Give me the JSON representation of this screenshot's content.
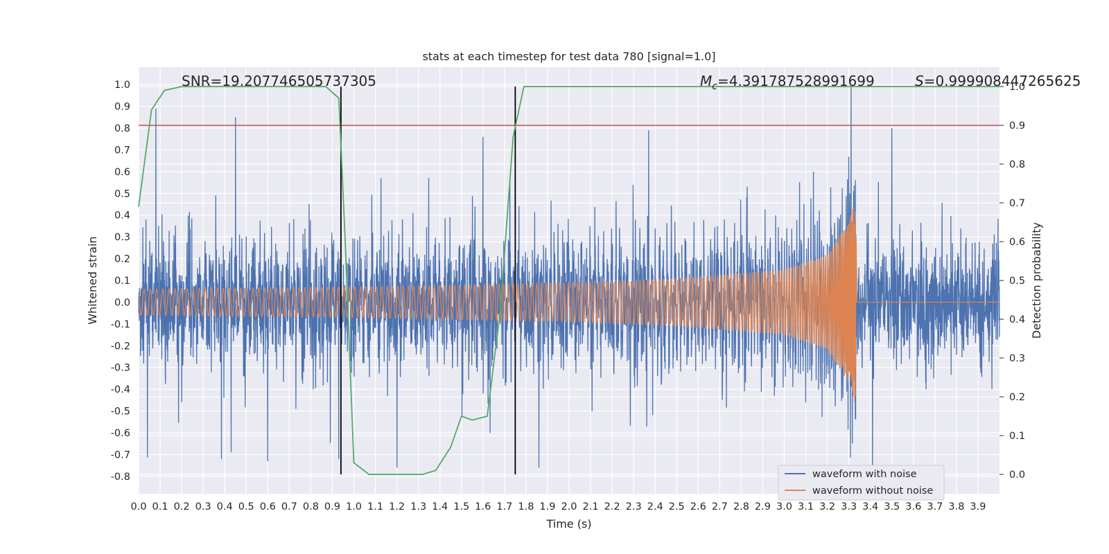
{
  "chart_data": {
    "type": "line",
    "title": "stats at each timestep for test data 780 [signal=1.0]",
    "xlabel": "Time (s)",
    "ylabel": "Whitened strain",
    "y2label": "Detection probability",
    "xlim": [
      0.0,
      4.0
    ],
    "ylim": [
      -0.88,
      1.08
    ],
    "y2lim": [
      -0.05,
      1.05
    ],
    "x_ticks": [
      "0.0",
      "0.1",
      "0.2",
      "0.3",
      "0.4",
      "0.5",
      "0.6",
      "0.7",
      "0.8",
      "0.9",
      "1.0",
      "1.1",
      "1.2",
      "1.3",
      "1.4",
      "1.5",
      "1.6",
      "1.7",
      "1.8",
      "1.9",
      "2.0",
      "2.1",
      "2.2",
      "2.3",
      "2.4",
      "2.5",
      "2.6",
      "2.7",
      "2.8",
      "2.9",
      "3.0",
      "3.1",
      "3.2",
      "3.3",
      "3.4",
      "3.5",
      "3.6",
      "3.7",
      "3.8",
      "3.9"
    ],
    "y_ticks": [
      "1.0",
      "0.9",
      "0.8",
      "0.7",
      "0.6",
      "0.5",
      "0.4",
      "0.3",
      "0.2",
      "0.1",
      "0.0",
      "-0.1",
      "-0.2",
      "-0.3",
      "-0.4",
      "-0.5",
      "-0.6",
      "-0.7",
      "-0.8"
    ],
    "y2_ticks": [
      "1.0",
      "0.9",
      "0.8",
      "0.7",
      "0.6",
      "0.5",
      "0.4",
      "0.3",
      "0.2",
      "0.1",
      "0.0"
    ],
    "grid": true,
    "legend_position": "lower-right",
    "annotations": {
      "snr": "SNR=19.207746505737305",
      "mc_symbol": "M",
      "mc_sub": "c",
      "mc_value": "=4.391787528991699",
      "s_symbol": "S",
      "s_value": "=0.999908447265625"
    },
    "series": [
      {
        "name": "waveform with noise",
        "color": "#4c72b0",
        "description_level": "noisy strain",
        "amplitude_estimate": 0.3,
        "peaks": [
          [
            0.08,
            0.89
          ],
          [
            0.45,
            0.85
          ],
          [
            0.94,
            0.93
          ],
          [
            3.31,
            1.0
          ],
          [
            3.5,
            0.8
          ],
          [
            2.37,
            0.79
          ],
          [
            1.6,
            0.76
          ]
        ],
        "troughs": [
          [
            1.2,
            -0.76
          ],
          [
            3.41,
            -0.8
          ],
          [
            0.43,
            -0.69
          ],
          [
            0.6,
            -0.73
          ],
          [
            0.93,
            -0.72
          ],
          [
            1.86,
            -0.76
          ]
        ]
      },
      {
        "name": "waveform without noise",
        "color": "#dd8452",
        "envelope_x": [
          0.0,
          1.0,
          2.0,
          2.5,
          3.0,
          3.2,
          3.3,
          3.33,
          3.34,
          4.0
        ],
        "envelope_amp": [
          0.06,
          0.07,
          0.09,
          0.11,
          0.15,
          0.22,
          0.37,
          0.47,
          0.0,
          0.0
        ]
      },
      {
        "name": "detection probability",
        "color": "#55a868",
        "axis": "right",
        "x": [
          0.0,
          0.06,
          0.12,
          0.2,
          0.3,
          0.5,
          0.7,
          0.87,
          0.93,
          0.96,
          1.0,
          1.07,
          1.15,
          1.25,
          1.32,
          1.38,
          1.45,
          1.5,
          1.55,
          1.62,
          1.68,
          1.74,
          1.79,
          1.82,
          2.0,
          2.5,
          3.0,
          3.5,
          4.0
        ],
        "y": [
          0.69,
          0.94,
          0.99,
          1.0,
          1.0,
          1.0,
          1.0,
          1.0,
          0.97,
          0.6,
          0.03,
          0.0,
          0.0,
          0.0,
          0.0,
          0.01,
          0.07,
          0.15,
          0.14,
          0.15,
          0.42,
          0.87,
          1.0,
          1.0,
          1.0,
          1.0,
          1.0,
          1.0,
          1.0
        ]
      }
    ],
    "threshold_line": {
      "color": "#c44e52",
      "y2": 0.9
    },
    "vertical_lines": {
      "color": "#000000",
      "x": [
        0.94,
        1.75
      ],
      "y2_range": [
        0.0,
        1.0
      ]
    }
  }
}
